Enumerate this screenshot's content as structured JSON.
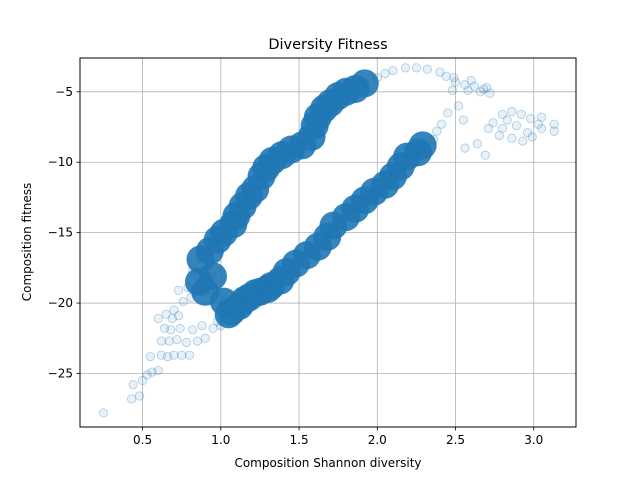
{
  "chart_data": {
    "type": "scatter",
    "title": "Diversity Fitness",
    "xlabel": "Composition Shannon diversity",
    "ylabel": "Composition fitness",
    "xlim": [
      0.1,
      3.27
    ],
    "ylim": [
      -28.8,
      -2.6
    ],
    "xticks": [
      0.5,
      1.0,
      1.5,
      2.0,
      2.5,
      3.0
    ],
    "xtick_labels": [
      "0.5",
      "1.0",
      "1.5",
      "2.0",
      "2.5",
      "3.0"
    ],
    "yticks": [
      -25,
      -20,
      -15,
      -10,
      -5
    ],
    "ytick_labels": [
      "−25",
      "−20",
      "−15",
      "−10",
      "−5"
    ],
    "grid": true,
    "marker_color": "#1f77b4",
    "marker_alpha": 0.1,
    "series": [
      {
        "name": "",
        "points": [
          [
            0.25,
            -27.8
          ],
          [
            0.43,
            -26.8
          ],
          [
            0.44,
            -25.8
          ],
          [
            0.5,
            -25.5
          ],
          [
            0.48,
            -26.6
          ],
          [
            0.53,
            -25.1
          ],
          [
            0.56,
            -24.9
          ],
          [
            0.6,
            -24.8
          ],
          [
            0.55,
            -23.8
          ],
          [
            0.62,
            -23.7
          ],
          [
            0.66,
            -23.8
          ],
          [
            0.7,
            -23.7
          ],
          [
            0.75,
            -23.7
          ],
          [
            0.8,
            -23.7
          ],
          [
            0.67,
            -22.7
          ],
          [
            0.72,
            -22.6
          ],
          [
            0.68,
            -21.9
          ],
          [
            0.74,
            -21.8
          ],
          [
            0.69,
            -21.1
          ],
          [
            0.73,
            -20.9
          ],
          [
            0.62,
            -22.7
          ],
          [
            0.64,
            -21.8
          ],
          [
            0.6,
            -21.1
          ],
          [
            0.65,
            -20.8
          ],
          [
            0.7,
            -20.5
          ],
          [
            0.78,
            -22.8
          ],
          [
            0.85,
            -22.7
          ],
          [
            0.9,
            -22.5
          ],
          [
            0.95,
            -21.8
          ],
          [
            1.0,
            -21.6
          ],
          [
            0.76,
            -19.9
          ],
          [
            0.81,
            -19.6
          ],
          [
            0.73,
            -19.1
          ],
          [
            0.79,
            -18.9
          ],
          [
            0.86,
            -18.5
          ],
          [
            0.95,
            -18.1
          ],
          [
            0.9,
            -19.2
          ],
          [
            1.02,
            -19.9
          ],
          [
            1.07,
            -20.6
          ],
          [
            1.15,
            -19.8
          ],
          [
            1.22,
            -19.3
          ],
          [
            1.3,
            -19.0
          ],
          [
            0.82,
            -17.7
          ],
          [
            0.87,
            -16.9
          ],
          [
            0.93,
            -16.3
          ],
          [
            0.98,
            -15.5
          ],
          [
            1.02,
            -15.0
          ],
          [
            1.08,
            -14.4
          ],
          [
            1.1,
            -13.8
          ],
          [
            1.14,
            -13.1
          ],
          [
            1.18,
            -12.4
          ],
          [
            1.22,
            -11.9
          ],
          [
            1.26,
            -11.0
          ],
          [
            1.29,
            -10.4
          ],
          [
            1.33,
            -9.9
          ],
          [
            1.39,
            -9.5
          ],
          [
            1.45,
            -9.1
          ],
          [
            1.52,
            -8.8
          ],
          [
            1.58,
            -8.2
          ],
          [
            1.6,
            -7.4
          ],
          [
            1.62,
            -6.8
          ],
          [
            1.66,
            -6.2
          ],
          [
            1.7,
            -5.8
          ],
          [
            1.75,
            -5.3
          ],
          [
            1.8,
            -5.0
          ],
          [
            1.86,
            -4.8
          ],
          [
            1.92,
            -4.4
          ],
          [
            2.0,
            -4.0
          ],
          [
            2.05,
            -3.7
          ],
          [
            2.1,
            -3.5
          ],
          [
            2.18,
            -3.3
          ],
          [
            2.25,
            -3.3
          ],
          [
            2.32,
            -3.4
          ],
          [
            2.4,
            -3.6
          ],
          [
            2.44,
            -3.9
          ],
          [
            2.5,
            -4.3
          ],
          [
            2.56,
            -4.5
          ],
          [
            2.62,
            -4.6
          ],
          [
            2.68,
            -4.8
          ],
          [
            2.72,
            -5.1
          ],
          [
            2.48,
            -4.9
          ],
          [
            2.52,
            -6.0
          ],
          [
            2.55,
            -7.0
          ],
          [
            2.45,
            -6.5
          ],
          [
            2.41,
            -7.3
          ],
          [
            2.38,
            -7.8
          ],
          [
            2.36,
            -8.4
          ],
          [
            2.29,
            -8.8
          ],
          [
            2.26,
            -9.3
          ],
          [
            2.19,
            -9.6
          ],
          [
            2.15,
            -10.3
          ],
          [
            2.1,
            -11.0
          ],
          [
            2.05,
            -11.6
          ],
          [
            1.98,
            -12.1
          ],
          [
            1.92,
            -12.7
          ],
          [
            1.86,
            -13.3
          ],
          [
            1.8,
            -13.9
          ],
          [
            1.72,
            -14.5
          ],
          [
            1.68,
            -15.3
          ],
          [
            1.62,
            -16.0
          ],
          [
            1.55,
            -16.6
          ],
          [
            1.48,
            -17.2
          ],
          [
            1.42,
            -17.8
          ],
          [
            1.38,
            -18.4
          ],
          [
            1.32,
            -18.8
          ],
          [
            1.25,
            -19.2
          ],
          [
            1.18,
            -19.6
          ],
          [
            1.12,
            -20.2
          ],
          [
            1.05,
            -20.8
          ],
          [
            0.98,
            -21.3
          ],
          [
            0.88,
            -21.6
          ],
          [
            0.82,
            -21.9
          ],
          [
            2.56,
            -9.0
          ],
          [
            2.64,
            -8.7
          ],
          [
            2.69,
            -9.5
          ],
          [
            2.8,
            -6.6
          ],
          [
            2.86,
            -6.4
          ],
          [
            2.92,
            -6.6
          ],
          [
            2.98,
            -6.9
          ],
          [
            3.05,
            -6.8
          ],
          [
            3.13,
            -7.3
          ],
          [
            3.13,
            -7.8
          ],
          [
            3.05,
            -7.6
          ],
          [
            2.99,
            -8.2
          ],
          [
            2.93,
            -8.5
          ],
          [
            2.86,
            -8.3
          ],
          [
            2.8,
            -7.6
          ],
          [
            2.74,
            -7.2
          ],
          [
            2.71,
            -7.6
          ],
          [
            2.78,
            -8.1
          ],
          [
            2.83,
            -7.0
          ],
          [
            2.89,
            -7.4
          ],
          [
            2.96,
            -7.9
          ],
          [
            3.03,
            -7.3
          ],
          [
            2.66,
            -5.0
          ],
          [
            2.58,
            -4.9
          ],
          [
            2.49,
            -4.0
          ],
          [
            2.6,
            -4.2
          ],
          [
            2.7,
            -4.7
          ]
        ]
      }
    ]
  }
}
